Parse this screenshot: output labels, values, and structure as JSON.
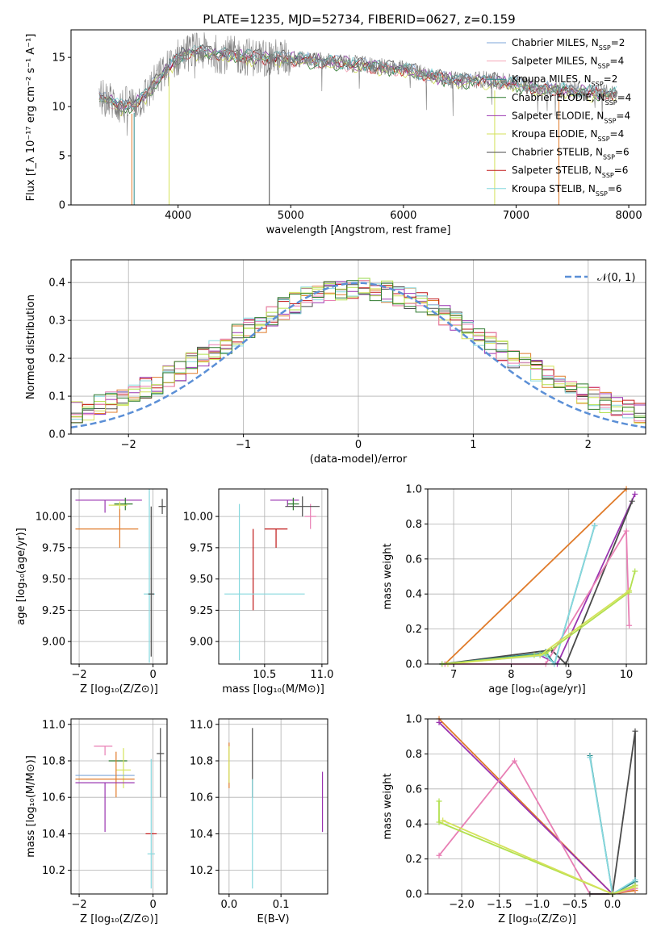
{
  "figure": {
    "title": "PLATE=1235, MJD=52734, FIBERID=0627, z=0.159"
  },
  "colors": {
    "chabrier_miles": "#7ea6d8",
    "salpeter_miles": "#f4a6b8",
    "kroupa_miles": "#2c8a8a",
    "chabrier_elodie": "#2f7a2f",
    "salpeter_elodie": "#9a35b0",
    "kroupa_elodie": "#d4e25a",
    "chabrier_stelib": "#4a4a4a",
    "salpeter_stelib": "#c01616",
    "kroupa_stelib": "#86d8de",
    "orange": "#e07b2a",
    "pink": "#e87fb4",
    "lime": "#b2e04e",
    "normal": "#5b8fd6"
  },
  "chart_data": [
    {
      "id": "spectrum",
      "type": "line",
      "title": "PLATE=1235, MJD=52734, FIBERID=0627, z=0.159",
      "xlabel": "wavelength [Angstrom, rest frame]",
      "ylabel": "Flux [f_λ 10⁻¹⁷ erg cm⁻² s⁻¹ A⁻¹]",
      "xlim": [
        3050,
        8150
      ],
      "ylim": [
        0,
        17.8
      ],
      "xticks": [
        4000,
        5000,
        6000,
        7000,
        8000
      ],
      "yticks": [
        0,
        5,
        10,
        15
      ],
      "grid": false,
      "legend_position": "right",
      "data_color": "#808080",
      "data_anchors": {
        "x": [
          3300,
          3400,
          3500,
          3600,
          3700,
          3800,
          3900,
          4000,
          4100,
          4200,
          4300,
          4500,
          4700,
          5000,
          5300,
          5600,
          6000,
          6300,
          6500,
          6700,
          6900,
          7200,
          7500,
          7900
        ],
        "y": [
          11.0,
          10.6,
          10.0,
          10.3,
          11.0,
          12.5,
          13.8,
          15.0,
          15.6,
          15.6,
          15.4,
          15.2,
          15.0,
          14.9,
          14.6,
          14.3,
          13.8,
          13.0,
          12.6,
          12.8,
          12.5,
          11.9,
          11.6,
          11.3
        ]
      },
      "model_offsets": [
        0.1,
        -0.15,
        0.05,
        -0.2,
        0.0,
        -0.3,
        0.15,
        -0.1,
        0.05
      ],
      "legend": [
        {
          "label": "Chabrier MILES, ",
          "ssp": "2",
          "color_key": "chabrier_miles"
        },
        {
          "label": "Salpeter MILES, ",
          "ssp": "4",
          "color_key": "salpeter_miles"
        },
        {
          "label": "Kroupa MILES, ",
          "ssp": "2",
          "color_key": "kroupa_miles"
        },
        {
          "label": "Chabrier ELODIE, ",
          "ssp": "4",
          "color_key": "chabrier_elodie"
        },
        {
          "label": "Salpeter ELODIE, ",
          "ssp": "4",
          "color_key": "salpeter_elodie"
        },
        {
          "label": "Kroupa ELODIE, ",
          "ssp": "4",
          "color_key": "kroupa_elodie"
        },
        {
          "label": "Chabrier STELIB, ",
          "ssp": "6",
          "color_key": "chabrier_stelib"
        },
        {
          "label": "Salpeter STELIB, ",
          "ssp": "6",
          "color_key": "salpeter_stelib"
        },
        {
          "label": "Kroupa STELIB, ",
          "ssp": "6",
          "color_key": "kroupa_stelib"
        }
      ]
    },
    {
      "id": "residuals",
      "type": "line",
      "xlabel": "(data-model)/error",
      "ylabel": "Normed distribution",
      "xlim": [
        -2.5,
        2.5
      ],
      "ylim": [
        0,
        0.46
      ],
      "xticks": [
        -2,
        -1,
        0,
        1,
        2
      ],
      "yticks": [
        0.0,
        0.1,
        0.2,
        0.3,
        0.4
      ],
      "grid": true,
      "legend_position": "top-right",
      "legend_label": "𝒩(0, 1)",
      "bin_width": 0.1
    },
    {
      "id": "age_vs_Z",
      "type": "errorbar",
      "xlabel": "Z [log₁₀(Z/Z⊙)]",
      "ylabel": "age  [log₁₀(age/yr)]",
      "xlim": [
        -2.22,
        0.38
      ],
      "ylim": [
        8.82,
        10.22
      ],
      "xticks": [
        -2,
        0
      ],
      "yticks": [
        9.0,
        9.25,
        9.5,
        9.75,
        10.0
      ],
      "grid": true,
      "points": [
        {
          "color_key": "salpeter_elodie",
          "x": -1.3,
          "xerr": [
            0.8,
            1.0
          ],
          "y": 10.13,
          "yerr": [
            0.1,
            0.0
          ]
        },
        {
          "color_key": "orange",
          "x": -0.9,
          "xerr": [
            1.2,
            0.5
          ],
          "y": 9.9,
          "yerr": [
            0.15,
            0.18
          ]
        },
        {
          "color_key": "chabrier_elodie",
          "x": -0.75,
          "xerr": [
            0.3,
            0.2
          ],
          "y": 10.1,
          "yerr": [
            0.05,
            0.05
          ]
        },
        {
          "color_key": "kroupa_elodie",
          "x": -0.9,
          "xerr": [
            0.3,
            0.2
          ],
          "y": 10.09,
          "yerr": [
            0.03,
            0.03
          ]
        },
        {
          "color_key": "chabrier_stelib",
          "x": 0.25,
          "xerr": [
            0.1,
            0.1
          ],
          "y": 10.08,
          "yerr": [
            0.06,
            0.06
          ]
        },
        {
          "color_key": "kroupa_stelib",
          "x": -0.1,
          "xerr": [
            0.15,
            0.15
          ],
          "y": 9.38,
          "yerr": [
            0.55,
            0.85
          ]
        },
        {
          "color_key": "chabrier_stelib",
          "x": -0.05,
          "xerr": [
            0.08,
            0.08
          ],
          "y": 9.38,
          "yerr": [
            0.5,
            0.7
          ]
        }
      ]
    },
    {
      "id": "age_vs_mass",
      "type": "errorbar",
      "xlabel": "mass [log₁₀(M/M⊙)]",
      "ylabel": "",
      "xlim": [
        10.1,
        11.05
      ],
      "ylim": [
        8.82,
        10.22
      ],
      "xticks": [
        10.5,
        11.0
      ],
      "yticks": [
        9.0,
        9.25,
        9.5,
        9.75,
        10.0
      ],
      "grid": true,
      "points": [
        {
          "color_key": "salpeter_elodie",
          "x": 10.7,
          "xerr": [
            0.15,
            0.1
          ],
          "y": 10.13,
          "yerr": [
            0.05,
            0.0
          ]
        },
        {
          "color_key": "pink",
          "x": 10.9,
          "xerr": [
            0.05,
            0.05
          ],
          "y": 10.0,
          "yerr": [
            0.1,
            0.1
          ]
        },
        {
          "color_key": "salpeter_stelib",
          "x": 10.6,
          "xerr": [
            0.1,
            0.1
          ],
          "y": 9.9,
          "yerr": [
            0.15,
            0.0
          ]
        },
        {
          "color_key": "chabrier_elodie",
          "x": 10.75,
          "xerr": [
            0.05,
            0.05
          ],
          "y": 10.1,
          "yerr": [
            0.05,
            0.05
          ]
        },
        {
          "color_key": "chabrier_stelib",
          "x": 10.83,
          "xerr": [
            0.15,
            0.15
          ],
          "y": 10.08,
          "yerr": [
            0.08,
            0.08
          ]
        },
        {
          "color_key": "salpeter_stelib",
          "x": 10.4,
          "xerr": [
            0.0,
            0.0
          ],
          "y": 9.5,
          "yerr": [
            0.25,
            0.4
          ]
        },
        {
          "color_key": "kroupa_stelib",
          "x": 10.28,
          "xerr": [
            0.0,
            0.0
          ],
          "y": 9.6,
          "yerr": [
            0.75,
            0.5
          ]
        },
        {
          "color_key": "kroupa_stelib",
          "x": 10.55,
          "xerr": [
            0.4,
            0.3
          ],
          "y": 9.38,
          "yerr": [
            0.0,
            0.0
          ]
        }
      ]
    },
    {
      "id": "weight_vs_age",
      "type": "line",
      "xlabel": "age  [log₁₀(age/yr)]",
      "ylabel": "mass weight",
      "xlim": [
        6.55,
        10.35
      ],
      "ylim": [
        0,
        1.0
      ],
      "xticks": [
        7,
        8,
        9,
        10
      ],
      "yticks": [
        0.0,
        0.2,
        0.4,
        0.6,
        0.8,
        1.0
      ],
      "grid": true,
      "series": [
        {
          "color_key": "orange",
          "x": [
            6.85,
            10.0
          ],
          "y": [
            0.0,
            1.0
          ]
        },
        {
          "color_key": "salpeter_elodie",
          "x": [
            6.8,
            8.5,
            8.8,
            10.15
          ],
          "y": [
            0.0,
            0.05,
            0.0,
            0.97
          ]
        },
        {
          "color_key": "chabrier_stelib",
          "x": [
            6.8,
            8.7,
            8.95,
            10.1
          ],
          "y": [
            0.0,
            0.08,
            0.0,
            0.93
          ]
        },
        {
          "color_key": "pink",
          "x": [
            6.85,
            8.6,
            10.0,
            10.05
          ],
          "y": [
            0.0,
            0.0,
            0.76,
            0.22
          ]
        },
        {
          "color_key": "kroupa_miles",
          "x": [
            6.8,
            8.5,
            8.6,
            8.75,
            9.45
          ],
          "y": [
            0.0,
            0.06,
            0.07,
            0.0,
            0.79
          ]
        },
        {
          "color_key": "kroupa_stelib",
          "x": [
            6.8,
            8.6,
            8.75,
            9.45
          ],
          "y": [
            0.0,
            0.05,
            0.0,
            0.79
          ]
        },
        {
          "color_key": "lime",
          "x": [
            6.8,
            8.4,
            8.6,
            10.05,
            10.15
          ],
          "y": [
            0.0,
            0.05,
            0.06,
            0.41,
            0.53
          ]
        },
        {
          "color_key": "kroupa_elodie",
          "x": [
            6.9,
            8.5,
            10.05
          ],
          "y": [
            0.0,
            0.05,
            0.42
          ]
        }
      ]
    },
    {
      "id": "mass_vs_Z",
      "type": "errorbar",
      "xlabel": "Z [log₁₀(Z/Z⊙)]",
      "ylabel": "mass [log₁₀(M/M⊙)]",
      "xlim": [
        -2.22,
        0.38
      ],
      "ylim": [
        10.07,
        11.03
      ],
      "xticks": [
        -2,
        0
      ],
      "yticks": [
        10.2,
        10.4,
        10.6,
        10.8,
        11.0
      ],
      "grid": true,
      "points": [
        {
          "color_key": "pink",
          "x": -1.3,
          "xerr": [
            0.3,
            0.2
          ],
          "y": 10.88,
          "yerr": [
            0.05,
            0.0
          ]
        },
        {
          "color_key": "chabrier_elodie",
          "x": -0.9,
          "xerr": [
            0.3,
            0.2
          ],
          "y": 10.8,
          "yerr": [
            0.0,
            0.0
          ]
        },
        {
          "color_key": "kroupa_elodie",
          "x": -0.8,
          "xerr": [
            0.2,
            0.2
          ],
          "y": 10.75,
          "yerr": [
            0.1,
            0.12
          ]
        },
        {
          "color_key": "chabrier_miles",
          "x": -1.0,
          "xerr": [
            1.1,
            0.5
          ],
          "y": 10.72,
          "yerr": [
            0.0,
            0.0
          ]
        },
        {
          "color_key": "orange",
          "x": -1.0,
          "xerr": [
            1.1,
            0.5
          ],
          "y": 10.7,
          "yerr": [
            0.1,
            0.15
          ]
        },
        {
          "color_key": "salpeter_elodie",
          "x": -1.3,
          "xerr": [
            0.8,
            0.8
          ],
          "y": 10.68,
          "yerr": [
            0.27,
            0.0
          ]
        },
        {
          "color_key": "chabrier_stelib",
          "x": 0.2,
          "xerr": [
            0.1,
            0.1
          ],
          "y": 10.84,
          "yerr": [
            0.24,
            0.14
          ]
        },
        {
          "color_key": "salpeter_stelib",
          "x": -0.05,
          "xerr": [
            0.15,
            0.15
          ],
          "y": 10.4,
          "yerr": [
            0.0,
            0.0
          ]
        },
        {
          "color_key": "kroupa_stelib",
          "x": -0.05,
          "xerr": [
            0.1,
            0.1
          ],
          "y": 10.29,
          "yerr": [
            0.19,
            0.52
          ]
        }
      ]
    },
    {
      "id": "mass_vs_ebv",
      "type": "errorbar",
      "xlabel": "E(B-V)",
      "ylabel": "",
      "xlim": [
        -0.02,
        0.19
      ],
      "ylim": [
        10.07,
        11.03
      ],
      "xticks": [
        0.0,
        0.1
      ],
      "yticks": [
        10.2,
        10.4,
        10.6,
        10.8,
        11.0
      ],
      "grid": true,
      "points": [
        {
          "color_key": "orange",
          "x": 0.0,
          "xerr": [
            0.0,
            0.0
          ],
          "y": 10.7,
          "yerr": [
            0.05,
            0.2
          ]
        },
        {
          "color_key": "kroupa_elodie",
          "x": 0.0,
          "xerr": [
            0.0,
            0.0
          ],
          "y": 10.78,
          "yerr": [
            0.1,
            0.1
          ]
        },
        {
          "color_key": "chabrier_stelib",
          "x": 0.045,
          "xerr": [
            0.0,
            0.0
          ],
          "y": 10.84,
          "yerr": [
            0.24,
            0.14
          ]
        },
        {
          "color_key": "kroupa_stelib",
          "x": 0.045,
          "xerr": [
            0.0,
            0.0
          ],
          "y": 10.5,
          "yerr": [
            0.4,
            0.2
          ]
        },
        {
          "color_key": "salpeter_elodie",
          "x": 0.18,
          "xerr": [
            0.0,
            0.0
          ],
          "y": 10.57,
          "yerr": [
            0.16,
            0.17
          ]
        }
      ]
    },
    {
      "id": "weight_vs_Z",
      "type": "line",
      "xlabel": "Z [log₁₀(Z/Z⊙)]",
      "ylabel": "mass weight",
      "xlim": [
        -2.45,
        0.45
      ],
      "ylim": [
        0,
        1.0
      ],
      "xticks": [
        -2.0,
        -1.5,
        -1.0,
        -0.5,
        0.0
      ],
      "yticks": [
        0.0,
        0.2,
        0.4,
        0.6,
        0.8,
        1.0
      ],
      "grid": true,
      "series": [
        {
          "color_key": "orange",
          "x": [
            -2.3,
            0.0,
            0.3
          ],
          "y": [
            1.0,
            0.0,
            0.02
          ]
        },
        {
          "color_key": "salpeter_elodie",
          "x": [
            -2.3,
            0.0,
            0.3
          ],
          "y": [
            0.98,
            0.0,
            0.05
          ]
        },
        {
          "color_key": "pink",
          "x": [
            -2.3,
            -1.3,
            -0.3,
            0.0,
            0.3
          ],
          "y": [
            0.22,
            0.76,
            0.0,
            0.0,
            0.03
          ]
        },
        {
          "color_key": "chabrier_stelib",
          "x": [
            -0.3,
            0.0,
            0.3,
            0.3
          ],
          "y": [
            0.0,
            0.0,
            0.93,
            0.07
          ]
        },
        {
          "color_key": "kroupa_miles",
          "x": [
            -0.3,
            0.0,
            0.3
          ],
          "y": [
            0.79,
            0.0,
            0.07
          ]
        },
        {
          "color_key": "kroupa_stelib",
          "x": [
            -0.3,
            0.0,
            0.3
          ],
          "y": [
            0.78,
            0.0,
            0.08
          ]
        },
        {
          "color_key": "lime",
          "x": [
            -2.3,
            -2.3,
            0.0,
            0.3
          ],
          "y": [
            0.53,
            0.41,
            0.0,
            0.05
          ]
        },
        {
          "color_key": "kroupa_elodie",
          "x": [
            -2.25,
            0.0,
            0.3
          ],
          "y": [
            0.42,
            0.0,
            0.04
          ]
        }
      ]
    }
  ]
}
